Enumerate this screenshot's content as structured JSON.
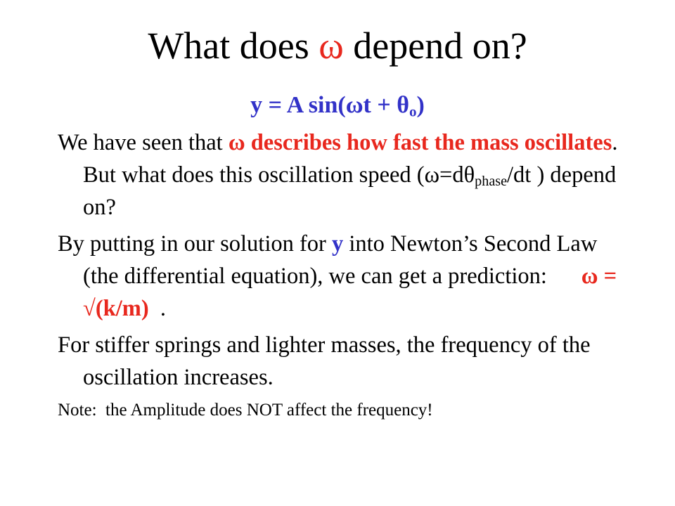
{
  "title": {
    "runs": [
      {
        "text": "What does "
      },
      {
        "text": "ω",
        "color": "#e8281e"
      },
      {
        "text": " depend on?"
      }
    ]
  },
  "equation": {
    "runs": [
      {
        "text": "y = A sin(ωt + θ",
        "color": "#3232c8",
        "bold": true
      },
      {
        "text": "o",
        "color": "#3232c8",
        "bold": true,
        "sub": true
      },
      {
        "text": ")",
        "color": "#3232c8",
        "bold": true
      }
    ]
  },
  "paragraphs": [
    {
      "runs": [
        {
          "text": "We have seen that "
        },
        {
          "text": "ω describes how fast the mass oscillates",
          "color": "#e8281e",
          "bold": true
        },
        {
          "text": ".  But what does this oscillation speed (ω=dθ"
        },
        {
          "text": "phase",
          "sub": true
        },
        {
          "text": "/dt ) depend on?"
        }
      ]
    },
    {
      "runs": [
        {
          "text": "By putting in our solution for "
        },
        {
          "text": "y",
          "color": "#3232c8",
          "bold": true
        },
        {
          "text": " into Newton’s Second Law (the differential equation), we can get a prediction:      "
        },
        {
          "text": "ω = √(k/m)",
          "color": "#e8281e",
          "bold": true
        },
        {
          "text": "  ."
        }
      ]
    },
    {
      "runs": [
        {
          "text": "For stiffer springs and lighter masses, the frequency of the oscillation increases."
        }
      ]
    },
    {
      "runs": [
        {
          "text": "Note:  the Amplitude does NOT affect the frequency!"
        }
      ],
      "small": true
    }
  ]
}
